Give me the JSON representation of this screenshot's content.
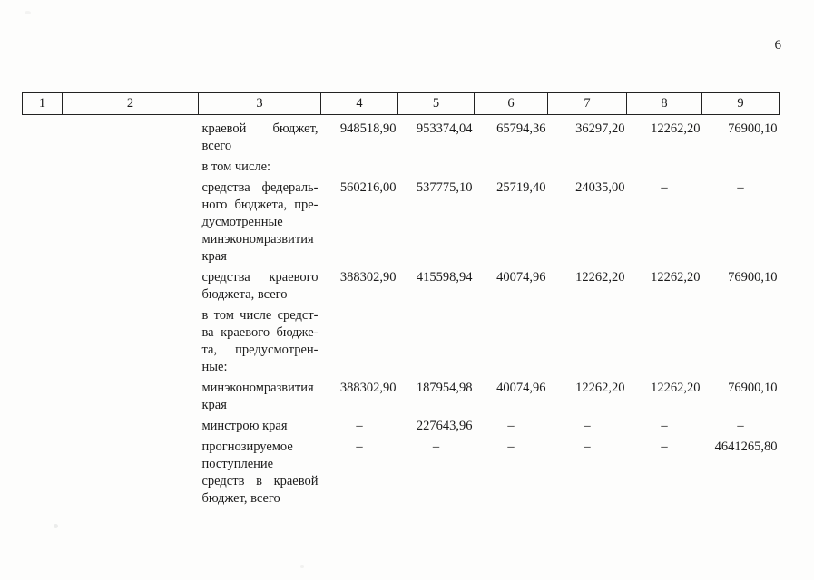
{
  "page": {
    "number": "6"
  },
  "table": {
    "header": [
      "1",
      "2",
      "3",
      "4",
      "5",
      "6",
      "7",
      "8",
      "9"
    ],
    "rows": [
      {
        "label_lines": [
          "краевой бюджет,",
          "всего"
        ],
        "values": [
          "948518,90",
          "953374,04",
          "65794,36",
          "36297,20",
          "12262,20",
          "76900,10"
        ]
      },
      {
        "label_lines": [
          "в том числе:"
        ],
        "values": [
          "",
          "",
          "",
          "",
          "",
          ""
        ]
      },
      {
        "label_lines": [
          "средства федераль-",
          "ного бюджета, пре-",
          "дусмотренные",
          "минэкономразвития",
          "края"
        ],
        "values": [
          "560216,00",
          "537775,10",
          "25719,40",
          "24035,00",
          "–",
          "–"
        ]
      },
      {
        "label_lines": [
          "средства краевого",
          "бюджета, всего"
        ],
        "values": [
          "388302,90",
          "415598,94",
          "40074,96",
          "12262,20",
          "12262,20",
          "76900,10"
        ]
      },
      {
        "label_lines": [
          "в том числе средст-",
          "ва краевого бюдже-",
          "та, предусмотрен-",
          "ные:"
        ],
        "values": [
          "",
          "",
          "",
          "",
          "",
          ""
        ]
      },
      {
        "label_lines": [
          "минэкономразвития",
          "края"
        ],
        "values": [
          "388302,90",
          "187954,98",
          "40074,96",
          "12262,20",
          "12262,20",
          "76900,10"
        ]
      },
      {
        "label_lines": [
          "минстрою края"
        ],
        "values": [
          "–",
          "227643,96",
          "–",
          "–",
          "–",
          "–"
        ]
      },
      {
        "label_lines": [
          "прогнозируемое",
          "поступление",
          "средств в краевой",
          "бюджет, всего"
        ],
        "values": [
          "–",
          "–",
          "–",
          "–",
          "–",
          "4641265,80"
        ]
      }
    ]
  }
}
